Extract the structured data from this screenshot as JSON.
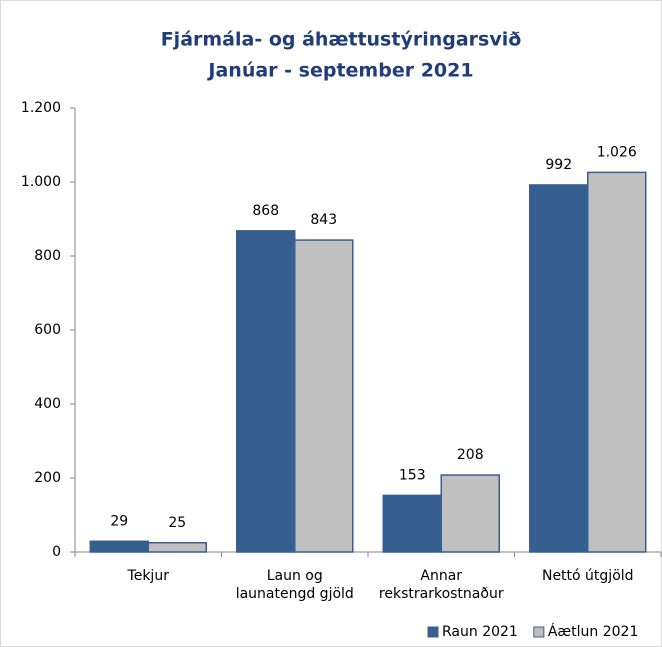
{
  "chart_data": {
    "type": "bar",
    "title": "Fjármála- og áhættustýringarsvið",
    "subtitle": "Janúar - september 2021",
    "categories": [
      [
        "Tekjur"
      ],
      [
        "Laun og",
        "launatengd gjöld"
      ],
      [
        "Annar",
        "rekstrarkostnaður"
      ],
      [
        "Nettó útgjöld"
      ]
    ],
    "series": [
      {
        "name": "Raun 2021",
        "color": "#355f91",
        "values": [
          29,
          868,
          153,
          992
        ],
        "value_labels": [
          "29",
          "868",
          "153",
          "992"
        ]
      },
      {
        "name": "Áætlun 2021",
        "color": "#c0c0c0",
        "values": [
          25,
          843,
          208,
          1026
        ],
        "value_labels": [
          "25",
          "843",
          "208",
          "1.026"
        ]
      }
    ],
    "ylim": [
      0,
      1200
    ],
    "yticks": [
      0,
      200,
      400,
      600,
      800,
      {
        "value": 1000,
        "label": "1.000"
      },
      {
        "value": 1200,
        "label": "1.200"
      }
    ],
    "grid": false,
    "legend": "bottom-right"
  }
}
